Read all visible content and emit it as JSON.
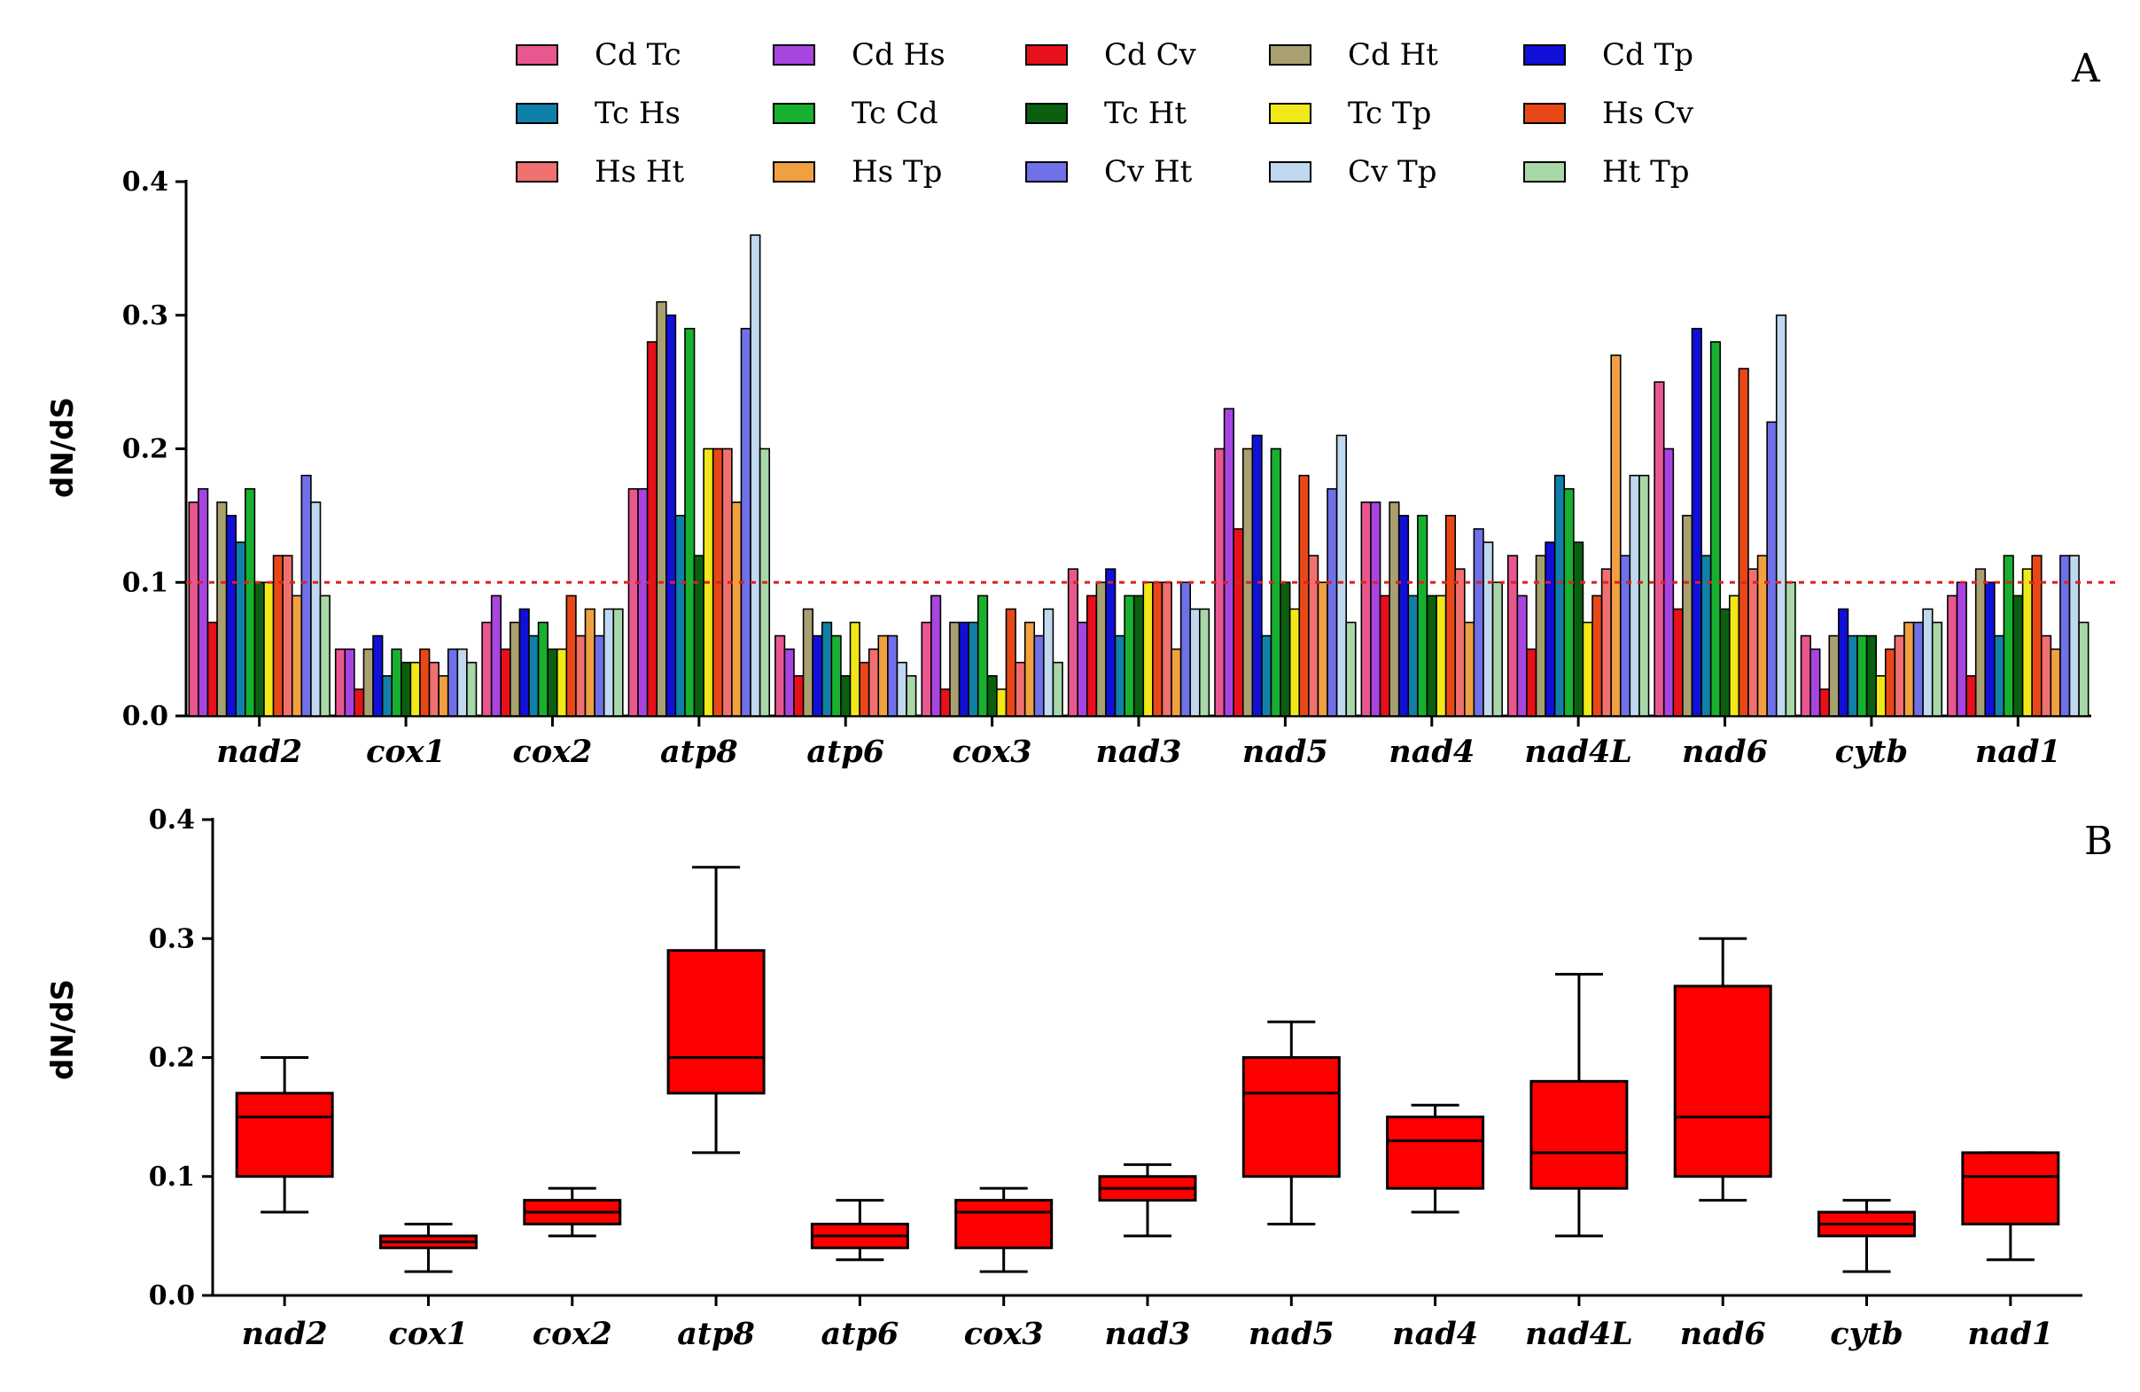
{
  "chart_data": [
    {
      "panel_label": "A",
      "type": "bar",
      "xlabel": "",
      "ylabel": "dN/dS",
      "ylim": [
        0,
        0.4
      ],
      "yticks": [
        "0.0",
        "0.1",
        "0.2",
        "0.3",
        "0.4"
      ],
      "reference_line": {
        "y": 0.1,
        "style": "dotted",
        "color": "#e02020"
      },
      "legend_placement": "top",
      "categories": [
        "nad2",
        "cox1",
        "cox2",
        "atp8",
        "atp6",
        "cox3",
        "nad3",
        "nad5",
        "nad4",
        "nad4L",
        "nad6",
        "cytb",
        "nad1"
      ],
      "series": [
        {
          "name": "Cd Tc",
          "color": "#e8578f",
          "values": [
            0.16,
            0.05,
            0.07,
            0.17,
            0.06,
            0.07,
            0.11,
            0.2,
            0.16,
            0.12,
            0.25,
            0.06,
            0.09
          ]
        },
        {
          "name": "Cd Hs",
          "color": "#a845e0",
          "values": [
            0.17,
            0.05,
            0.09,
            0.17,
            0.05,
            0.09,
            0.07,
            0.23,
            0.16,
            0.09,
            0.2,
            0.05,
            0.1
          ]
        },
        {
          "name": "Cd Cv",
          "color": "#e8101a",
          "values": [
            0.07,
            0.02,
            0.05,
            0.28,
            0.03,
            0.02,
            0.09,
            0.14,
            0.09,
            0.05,
            0.08,
            0.02,
            0.03
          ]
        },
        {
          "name": "Cd Ht",
          "color": "#a8a070",
          "values": [
            0.16,
            0.05,
            0.07,
            0.31,
            0.08,
            0.07,
            0.1,
            0.2,
            0.16,
            0.12,
            0.15,
            0.06,
            0.11
          ]
        },
        {
          "name": "Cd Tp",
          "color": "#1010d8",
          "values": [
            0.15,
            0.06,
            0.08,
            0.3,
            0.06,
            0.07,
            0.11,
            0.21,
            0.15,
            0.13,
            0.29,
            0.08,
            0.1
          ]
        },
        {
          "name": "Tc Hs",
          "color": "#1080a8",
          "values": [
            0.13,
            0.03,
            0.06,
            0.15,
            0.07,
            0.07,
            0.06,
            0.06,
            0.09,
            0.18,
            0.12,
            0.06,
            0.06
          ]
        },
        {
          "name": "Tc Cd",
          "color": "#18b030",
          "values": [
            0.17,
            0.05,
            0.07,
            0.29,
            0.06,
            0.09,
            0.09,
            0.2,
            0.15,
            0.17,
            0.28,
            0.06,
            0.12
          ]
        },
        {
          "name": "Tc Ht",
          "color": "#0a6010",
          "values": [
            0.1,
            0.04,
            0.05,
            0.12,
            0.03,
            0.03,
            0.09,
            0.1,
            0.09,
            0.13,
            0.08,
            0.06,
            0.09
          ]
        },
        {
          "name": "Tc Tp",
          "color": "#f0e818",
          "values": [
            0.1,
            0.04,
            0.05,
            0.2,
            0.07,
            0.02,
            0.1,
            0.08,
            0.09,
            0.07,
            0.09,
            0.03,
            0.11
          ]
        },
        {
          "name": "Hs Cv",
          "color": "#e84818",
          "values": [
            0.12,
            0.05,
            0.09,
            0.2,
            0.04,
            0.08,
            0.1,
            0.18,
            0.15,
            0.09,
            0.26,
            0.05,
            0.12
          ]
        },
        {
          "name": "Hs Ht",
          "color": "#f07070",
          "values": [
            0.12,
            0.04,
            0.06,
            0.2,
            0.05,
            0.04,
            0.1,
            0.12,
            0.11,
            0.11,
            0.11,
            0.06,
            0.06
          ]
        },
        {
          "name": "Hs Tp",
          "color": "#f0a040",
          "values": [
            0.09,
            0.03,
            0.08,
            0.16,
            0.06,
            0.07,
            0.05,
            0.1,
            0.07,
            0.27,
            0.12,
            0.07,
            0.05
          ]
        },
        {
          "name": "Cv Ht",
          "color": "#7070e8",
          "values": [
            0.18,
            0.05,
            0.06,
            0.29,
            0.06,
            0.06,
            0.1,
            0.17,
            0.14,
            0.12,
            0.22,
            0.07,
            0.12
          ]
        },
        {
          "name": "Cv Tp",
          "color": "#c0d8f0",
          "values": [
            0.16,
            0.05,
            0.08,
            0.36,
            0.04,
            0.08,
            0.08,
            0.21,
            0.13,
            0.18,
            0.3,
            0.08,
            0.12
          ]
        },
        {
          "name": "Ht Tp",
          "color": "#a8d8a8",
          "values": [
            0.09,
            0.04,
            0.08,
            0.2,
            0.03,
            0.04,
            0.08,
            0.07,
            0.1,
            0.18,
            0.1,
            0.07,
            0.07
          ]
        }
      ]
    },
    {
      "panel_label": "B",
      "type": "box",
      "xlabel": "",
      "ylabel": "dN/dS",
      "ylim": [
        0,
        0.4
      ],
      "yticks": [
        "0.0",
        "0.1",
        "0.2",
        "0.3",
        "0.4"
      ],
      "box_color": "#ff0000",
      "categories": [
        "nad2",
        "cox1",
        "cox2",
        "atp8",
        "atp6",
        "cox3",
        "nad3",
        "nad5",
        "nad4",
        "nad4L",
        "nad6",
        "cytb",
        "nad1"
      ],
      "boxes": [
        {
          "min": 0.07,
          "q1": 0.1,
          "median": 0.15,
          "q3": 0.17,
          "max": 0.2
        },
        {
          "min": 0.02,
          "q1": 0.04,
          "median": 0.045,
          "q3": 0.05,
          "max": 0.06
        },
        {
          "min": 0.05,
          "q1": 0.06,
          "median": 0.07,
          "q3": 0.08,
          "max": 0.09
        },
        {
          "min": 0.12,
          "q1": 0.17,
          "median": 0.2,
          "q3": 0.29,
          "max": 0.36
        },
        {
          "min": 0.03,
          "q1": 0.04,
          "median": 0.05,
          "q3": 0.06,
          "max": 0.08
        },
        {
          "min": 0.02,
          "q1": 0.04,
          "median": 0.07,
          "q3": 0.08,
          "max": 0.09
        },
        {
          "min": 0.05,
          "q1": 0.08,
          "median": 0.09,
          "q3": 0.1,
          "max": 0.11
        },
        {
          "min": 0.06,
          "q1": 0.1,
          "median": 0.17,
          "q3": 0.2,
          "max": 0.23
        },
        {
          "min": 0.07,
          "q1": 0.09,
          "median": 0.13,
          "q3": 0.15,
          "max": 0.16
        },
        {
          "min": 0.05,
          "q1": 0.09,
          "median": 0.12,
          "q3": 0.18,
          "max": 0.27
        },
        {
          "min": 0.08,
          "q1": 0.1,
          "median": 0.15,
          "q3": 0.26,
          "max": 0.3
        },
        {
          "min": 0.02,
          "q1": 0.05,
          "median": 0.06,
          "q3": 0.07,
          "max": 0.08
        },
        {
          "min": 0.03,
          "q1": 0.06,
          "median": 0.1,
          "q3": 0.12,
          "max": 0.12
        }
      ]
    }
  ]
}
